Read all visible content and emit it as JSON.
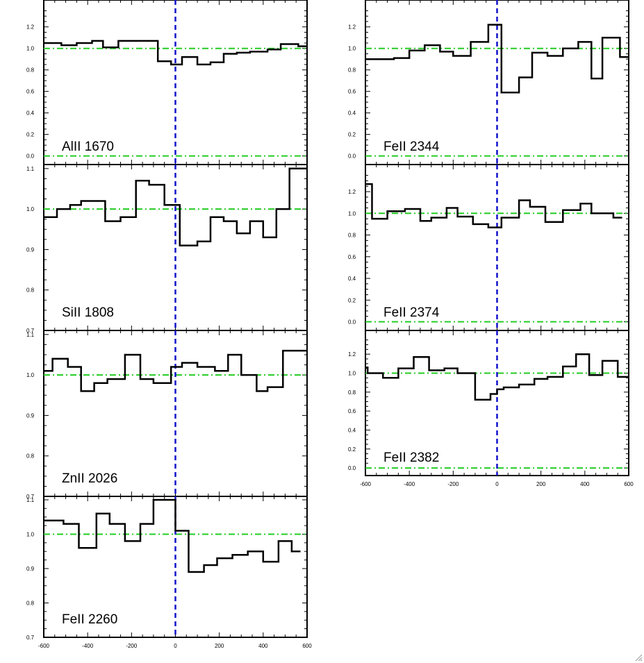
{
  "chart_data": {
    "type": "line",
    "style": "step",
    "colors": {
      "spectrum": "#000000",
      "continuum_level": "#22cc22",
      "zero_velocity": "#1111cc"
    },
    "x_ticks": [
      -600,
      -400,
      -200,
      0,
      200,
      400,
      600
    ],
    "xlim": [
      -600,
      600
    ],
    "panels": [
      {
        "label": "AlII 1670",
        "ylim": [
          -0.08,
          1.45
        ],
        "yticks": [
          0.0,
          0.2,
          0.4,
          0.6,
          0.8,
          1.0,
          1.2
        ],
        "ytick_labels": [
          "0.0",
          "0.2",
          "0.4",
          "0.6",
          "0.8",
          "1.0",
          "1.2"
        ],
        "reference_levels": [
          1.0,
          0.0
        ],
        "x": [
          -600,
          -520,
          -450,
          -380,
          -330,
          -260,
          -180,
          -130,
          -80,
          -20,
          30,
          100,
          160,
          220,
          280,
          340,
          420,
          480,
          560
        ],
        "y": [
          1.05,
          1.03,
          1.05,
          1.07,
          1.01,
          1.07,
          1.07,
          1.07,
          0.88,
          0.85,
          0.92,
          0.85,
          0.87,
          0.95,
          0.96,
          0.97,
          0.99,
          1.04,
          1.02
        ],
        "x_end": 600
      },
      {
        "label": "FeII 2344",
        "ylim": [
          -0.08,
          1.45
        ],
        "yticks": [
          0.0,
          0.2,
          0.4,
          0.6,
          0.8,
          1.0,
          1.2
        ],
        "ytick_labels": [
          "0.0",
          "0.2",
          "0.4",
          "0.6",
          "0.8",
          "1.0",
          "1.2"
        ],
        "reference_levels": [
          1.0,
          0.0
        ],
        "x": [
          -600,
          -470,
          -400,
          -330,
          -260,
          -200,
          -120,
          -40,
          20,
          100,
          160,
          230,
          300,
          370,
          430,
          480,
          560
        ],
        "y": [
          0.9,
          0.91,
          0.98,
          1.03,
          0.97,
          0.93,
          1.06,
          1.22,
          0.59,
          0.73,
          0.96,
          0.93,
          1.0,
          1.06,
          0.72,
          1.1,
          0.92
        ],
        "x_end": 600
      },
      {
        "label": "SiII 1808",
        "ylim": [
          0.7,
          1.11
        ],
        "yticks": [
          0.7,
          0.8,
          0.9,
          1.0,
          1.1
        ],
        "ytick_labels": [
          "0.7",
          "0.8",
          "0.9",
          "1.0",
          "1.1"
        ],
        "reference_levels": [
          1.0
        ],
        "x": [
          -600,
          -540,
          -480,
          -430,
          -370,
          -320,
          -250,
          -180,
          -120,
          -50,
          0,
          20,
          100,
          160,
          220,
          280,
          340,
          400,
          460,
          520
        ],
        "y": [
          0.98,
          1.0,
          1.01,
          1.02,
          1.02,
          0.97,
          0.98,
          1.07,
          1.06,
          1.01,
          1.01,
          0.91,
          0.92,
          0.98,
          0.97,
          0.94,
          0.97,
          0.93,
          1.0,
          1.1
        ],
        "x_end": 600
      },
      {
        "label": "FeII 2374",
        "ylim": [
          -0.08,
          1.45
        ],
        "yticks": [
          0.0,
          0.2,
          0.4,
          0.6,
          0.8,
          1.0,
          1.2
        ],
        "ytick_labels": [
          "0.0",
          "0.2",
          "0.4",
          "0.6",
          "0.8",
          "1.0",
          "1.2"
        ],
        "reference_levels": [
          1.0,
          0.0
        ],
        "x": [
          -600,
          -570,
          -500,
          -420,
          -350,
          -300,
          -230,
          -180,
          -110,
          -40,
          20,
          100,
          150,
          220,
          300,
          380,
          430,
          480,
          530
        ],
        "y": [
          1.27,
          0.95,
          1.02,
          1.04,
          0.93,
          0.96,
          1.05,
          0.97,
          0.9,
          0.87,
          0.96,
          1.12,
          1.06,
          0.92,
          1.03,
          1.09,
          1.0,
          1.0,
          0.96
        ],
        "x_end": 570
      },
      {
        "label": "ZnII 2026",
        "ylim": [
          0.7,
          1.11
        ],
        "yticks": [
          0.7,
          0.8,
          0.9,
          1.0,
          1.1
        ],
        "ytick_labels": [
          "0.7",
          "0.8",
          "0.9",
          "1.0",
          "1.1"
        ],
        "reference_levels": [
          1.0
        ],
        "x": [
          -600,
          -560,
          -490,
          -430,
          -370,
          -310,
          -230,
          -160,
          -100,
          -20,
          30,
          100,
          180,
          240,
          300,
          370,
          420,
          490,
          540
        ],
        "y": [
          1.01,
          1.04,
          1.02,
          0.96,
          0.98,
          0.99,
          1.05,
          0.99,
          0.98,
          1.02,
          1.03,
          1.02,
          1.01,
          1.05,
          1.0,
          0.96,
          0.97,
          1.06,
          1.06
        ],
        "x_end": 600
      },
      {
        "label": "FeII 2382",
        "ylim": [
          -0.08,
          1.45
        ],
        "yticks": [
          0.0,
          0.2,
          0.4,
          0.6,
          0.8,
          1.0,
          1.2
        ],
        "ytick_labels": [
          "0.0",
          "0.2",
          "0.4",
          "0.6",
          "0.8",
          "1.0",
          "1.2"
        ],
        "reference_levels": [
          1.0,
          0.0
        ],
        "x": [
          -600,
          -590,
          -520,
          -450,
          -380,
          -310,
          -240,
          -180,
          -100,
          -30,
          0,
          30,
          100,
          170,
          230,
          300,
          360,
          420,
          480,
          550
        ],
        "y": [
          1.06,
          1.0,
          0.95,
          1.05,
          1.17,
          1.03,
          1.05,
          1.0,
          0.72,
          0.78,
          0.83,
          0.85,
          0.88,
          0.94,
          0.96,
          1.07,
          1.2,
          0.98,
          1.13,
          0.96
        ],
        "x_end": 600
      },
      {
        "label": "FeII 2260",
        "ylim": [
          0.7,
          1.11
        ],
        "yticks": [
          0.7,
          0.8,
          0.9,
          1.0,
          1.1
        ],
        "ytick_labels": [
          "0.7",
          "0.8",
          "0.9",
          "1.0",
          "1.1"
        ],
        "reference_levels": [
          1.0
        ],
        "x": [
          -600,
          -510,
          -440,
          -360,
          -300,
          -230,
          -160,
          -100,
          0,
          60,
          130,
          190,
          260,
          330,
          400,
          470,
          530
        ],
        "y": [
          1.04,
          1.03,
          0.96,
          1.06,
          1.03,
          0.98,
          1.03,
          1.1,
          1.01,
          0.89,
          0.91,
          0.93,
          0.94,
          0.95,
          0.92,
          0.98,
          0.95
        ],
        "x_end": 570
      }
    ]
  }
}
